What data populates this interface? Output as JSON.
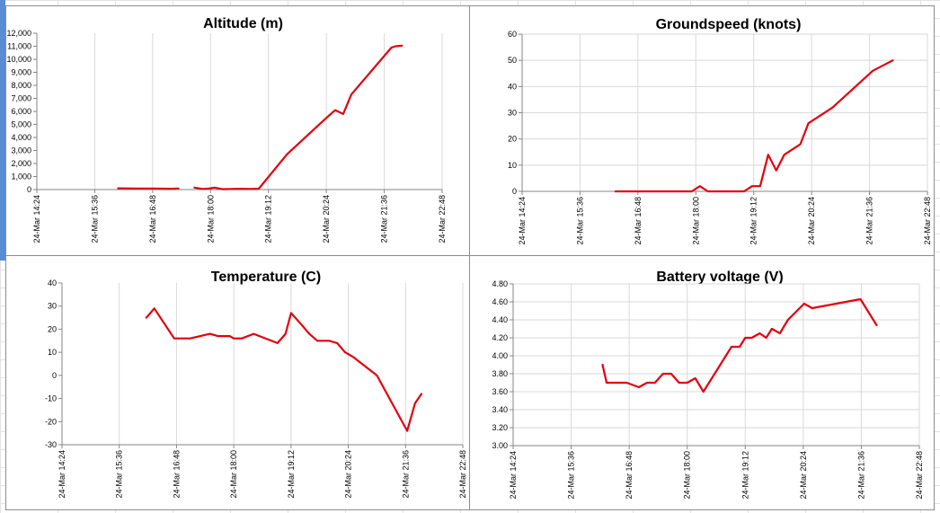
{
  "chart_data": [
    {
      "type": "line",
      "title": "Altitude (m)",
      "xlabel": "",
      "ylabel": "",
      "x_ticks": [
        "24-Mar 14:24",
        "24-Mar 15:36",
        "24-Mar 16:48",
        "24-Mar 18:00",
        "24-Mar 19:12",
        "24-Mar 20:24",
        "24-Mar 21:36",
        "24-Mar 22:48"
      ],
      "y_ticks": [
        "0",
        "1,000",
        "2,000",
        "3,000",
        "4,000",
        "5,000",
        "6,000",
        "7,000",
        "8,000",
        "9,000",
        "10,000",
        "11,000",
        "12,000"
      ],
      "ylim": [
        0,
        12000
      ],
      "grid": "vertical",
      "legend": "none",
      "series": [
        {
          "color": "#e3000f",
          "segments": [
            [
              [
                "16:05",
                100
              ],
              [
                "16:30",
                80
              ],
              [
                "16:50",
                80
              ],
              [
                "17:10",
                60
              ],
              [
                "17:20",
                80
              ]
            ],
            [
              [
                "17:40",
                150
              ],
              [
                "17:50",
                50
              ],
              [
                "18:00",
                100
              ],
              [
                "18:05",
                150
              ],
              [
                "18:15",
                30
              ],
              [
                "18:35",
                60
              ],
              [
                "18:50",
                50
              ],
              [
                "19:00",
                70
              ],
              [
                "19:35",
                2700
              ],
              [
                "20:10",
                4700
              ],
              [
                "20:24",
                5500
              ],
              [
                "20:35",
                6100
              ],
              [
                "20:45",
                5800
              ],
              [
                "20:55",
                7300
              ],
              [
                "21:45",
                10900
              ],
              [
                "21:50",
                11000
              ],
              [
                "21:58",
                11050
              ]
            ]
          ]
        }
      ]
    },
    {
      "type": "line",
      "title": "Groundspeed (knots)",
      "xlabel": "",
      "ylabel": "",
      "x_ticks": [
        "24-Mar 14:24",
        "24-Mar 15:36",
        "24-Mar 16:48",
        "24-Mar 18:00",
        "24-Mar 19:12",
        "24-Mar 20:24",
        "24-Mar 21:36",
        "24-Mar 22:48"
      ],
      "y_ticks": [
        "0",
        "10",
        "20",
        "30",
        "40",
        "50",
        "60"
      ],
      "ylim": [
        0,
        60
      ],
      "grid": "both",
      "legend": "none",
      "series": [
        {
          "color": "#e3000f",
          "segments": [
            [
              [
                "16:20",
                0
              ],
              [
                "17:55",
                0
              ],
              [
                "18:05",
                2
              ],
              [
                "18:15",
                0
              ],
              [
                "19:00",
                0
              ],
              [
                "19:10",
                2
              ],
              [
                "19:20",
                2
              ],
              [
                "19:30",
                14
              ],
              [
                "19:40",
                8
              ],
              [
                "19:50",
                14
              ],
              [
                "20:10",
                18
              ],
              [
                "20:20",
                26
              ],
              [
                "20:50",
                32
              ],
              [
                "21:40",
                46
              ],
              [
                "22:05",
                50
              ]
            ]
          ]
        }
      ]
    },
    {
      "type": "line",
      "title": "Temperature (C)",
      "xlabel": "",
      "ylabel": "",
      "x_ticks": [
        "24-Mar 14:24",
        "24-Mar 15:36",
        "24-Mar 16:48",
        "24-Mar 18:00",
        "24-Mar 19:12",
        "24-Mar 20:24",
        "24-Mar 21:36",
        "24-Mar 22:48"
      ],
      "y_ticks": [
        "-30",
        "-20",
        "-10",
        "0",
        "10",
        "20",
        "30",
        "40"
      ],
      "ylim": [
        -30,
        40
      ],
      "grid": "vertical",
      "legend": "none",
      "series": [
        {
          "color": "#e3000f",
          "segments": [
            [
              [
                "16:10",
                25
              ],
              [
                "16:20",
                29
              ],
              [
                "16:45",
                16
              ],
              [
                "17:05",
                16
              ],
              [
                "17:30",
                18
              ],
              [
                "17:40",
                17
              ],
              [
                "17:55",
                17
              ],
              [
                "18:00",
                16
              ],
              [
                "18:10",
                16
              ],
              [
                "18:25",
                18
              ],
              [
                "18:55",
                14
              ],
              [
                "19:05",
                18
              ],
              [
                "19:12",
                27
              ],
              [
                "19:25",
                22
              ],
              [
                "19:35",
                18
              ],
              [
                "19:45",
                15
              ],
              [
                "20:00",
                15
              ],
              [
                "20:10",
                14
              ],
              [
                "20:20",
                10
              ],
              [
                "20:30",
                8
              ],
              [
                "21:00",
                0
              ],
              [
                "21:38",
                -24
              ],
              [
                "21:48",
                -12
              ],
              [
                "21:56",
                -8
              ]
            ]
          ]
        }
      ]
    },
    {
      "type": "line",
      "title": "Battery voltage (V)",
      "xlabel": "",
      "ylabel": "",
      "x_ticks": [
        "24-Mar 14:24",
        "24-Mar 15:36",
        "24-Mar 16:48",
        "24-Mar 18:00",
        "24-Mar 19:12",
        "24-Mar 20:24",
        "24-Mar 21:36",
        "24-Mar 22:48"
      ],
      "y_ticks": [
        "3.00",
        "3.20",
        "3.40",
        "3.60",
        "3.80",
        "4.00",
        "4.20",
        "4.40",
        "4.60",
        "4.80"
      ],
      "ylim": [
        3.0,
        4.8
      ],
      "grid": "both",
      "legend": "none",
      "series": [
        {
          "color": "#e3000f",
          "segments": [
            [
              [
                "16:15",
                3.9
              ],
              [
                "16:20",
                3.7
              ],
              [
                "16:45",
                3.7
              ],
              [
                "17:00",
                3.65
              ],
              [
                "17:10",
                3.7
              ],
              [
                "17:20",
                3.7
              ],
              [
                "17:30",
                3.8
              ],
              [
                "17:40",
                3.8
              ],
              [
                "17:50",
                3.7
              ],
              [
                "18:00",
                3.7
              ],
              [
                "18:10",
                3.75
              ],
              [
                "18:20",
                3.6
              ],
              [
                "18:55",
                4.1
              ],
              [
                "19:05",
                4.1
              ],
              [
                "19:12",
                4.2
              ],
              [
                "19:20",
                4.2
              ],
              [
                "19:30",
                4.25
              ],
              [
                "19:38",
                4.2
              ],
              [
                "19:45",
                4.3
              ],
              [
                "19:55",
                4.25
              ],
              [
                "20:05",
                4.4
              ],
              [
                "20:25",
                4.58
              ],
              [
                "20:35",
                4.53
              ],
              [
                "21:35",
                4.63
              ],
              [
                "21:55",
                4.34
              ]
            ]
          ]
        }
      ]
    }
  ]
}
